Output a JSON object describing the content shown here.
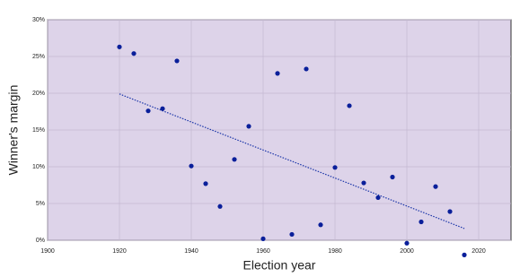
{
  "chart_data": {
    "type": "scatter",
    "x_label": "Election year",
    "y_label": "Winner's margin",
    "x": [
      1920,
      1924,
      1928,
      1932,
      1936,
      1940,
      1944,
      1948,
      1952,
      1956,
      1960,
      1964,
      1968,
      1972,
      1976,
      1980,
      1984,
      1988,
      1992,
      1996,
      2000,
      2004,
      2008,
      2012,
      2016
    ],
    "values": [
      26.3,
      25.4,
      17.6,
      17.9,
      24.4,
      10.1,
      7.7,
      4.6,
      11.0,
      15.5,
      0.2,
      22.7,
      0.8,
      23.3,
      2.1,
      9.9,
      18.3,
      7.8,
      5.8,
      8.6,
      -0.4,
      2.5,
      7.3,
      3.9,
      -2.0
    ],
    "color": "#0a1f9a",
    "trendline": {
      "x": [
        1920,
        2016
      ],
      "y": [
        19.9,
        1.6
      ],
      "color": "#1a35a8"
    },
    "xlim": [
      1900,
      2029
    ],
    "xticks": [
      1900,
      1920,
      1940,
      1960,
      1980,
      2000,
      2020
    ],
    "ylim": [
      0,
      30
    ],
    "yticks": [
      {
        "value": 0,
        "label": "0%"
      },
      {
        "value": 5,
        "label": "5%"
      },
      {
        "value": 10,
        "label": "10%"
      },
      {
        "value": 15,
        "label": "15%"
      },
      {
        "value": 20,
        "label": "20%"
      },
      {
        "value": 25,
        "label": "25%"
      },
      {
        "value": 30,
        "label": "30%"
      }
    ],
    "grid": true,
    "background": "#ddd3e9"
  }
}
